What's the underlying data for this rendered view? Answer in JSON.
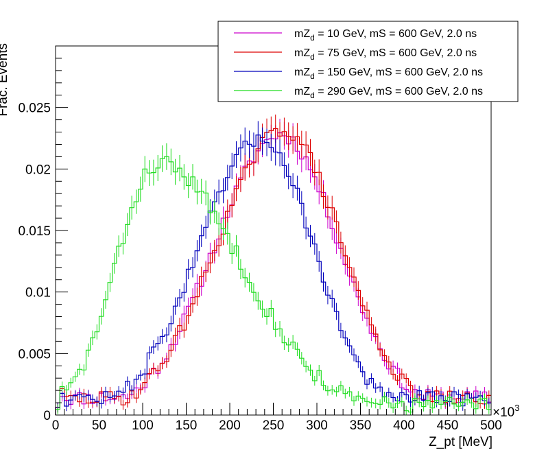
{
  "chart_data": {
    "type": "step-histogram",
    "title": "",
    "xlabel": "Z_pt [MeV]",
    "ylabel": "Frac. Events",
    "x_multiplier": "×10",
    "x_multiplier_exp": "3",
    "xlim": [
      0,
      500
    ],
    "ylim": [
      0,
      0.03
    ],
    "x_ticks": [
      0,
      50,
      100,
      150,
      200,
      250,
      300,
      350,
      400,
      450,
      500
    ],
    "x_tick_labels": [
      "0",
      "50",
      "100",
      "150",
      "200",
      "250",
      "300",
      "350",
      "400",
      "450",
      "500"
    ],
    "y_ticks": [
      0,
      0.005,
      0.01,
      0.015,
      0.02,
      0.025
    ],
    "y_tick_labels": [
      "0",
      "0.005",
      "0.01",
      "0.015",
      "0.02",
      "0.025"
    ],
    "bin_width": 5,
    "bins": 100,
    "legend_position": "top-right",
    "series": [
      {
        "name": "mZd = 10 GeV, mS = 600 GeV, 2.0 ns",
        "label_main": "mZ",
        "label_sub": "d",
        "label_rest": " = 10 GeV, mS = 600 GeV, 2.0 ns",
        "color": "#cc00cc",
        "peak_x": 258,
        "sigma_left": 75,
        "sigma_right": 68,
        "peak_y": 0.0228,
        "tail": 0.0018,
        "noise": 0.0006,
        "seed": 11
      },
      {
        "name": "mZd = 75 GeV, mS = 600 GeV, 2.0 ns",
        "label_main": "mZ",
        "label_sub": "d",
        "label_rest": " = 75 GeV, mS = 600 GeV, 2.0 ns",
        "color": "#dd0000",
        "peak_x": 262,
        "sigma_left": 76,
        "sigma_right": 66,
        "peak_y": 0.0232,
        "tail": 0.0017,
        "noise": 0.0006,
        "seed": 29
      },
      {
        "name": "mZd = 150 GeV, mS = 600 GeV, 2.0 ns",
        "label_main": "mZ",
        "label_sub": "d",
        "label_rest": " = 150 GeV, mS = 600 GeV, 2.0 ns",
        "color": "#0000bb",
        "peak_x": 237,
        "sigma_left": 72,
        "sigma_right": 60,
        "peak_y": 0.0225,
        "tail": 0.0017,
        "noise": 0.0006,
        "seed": 47
      },
      {
        "name": "mZd = 290 GeV, mS = 600 GeV, 2.0 ns",
        "label_main": "mZ",
        "label_sub": "d",
        "label_rest": " = 290 GeV, mS = 600 GeV, 2.0 ns",
        "color": "#22dd22",
        "peak_x": 118,
        "sigma_left": 48,
        "sigma_right": 95,
        "peak_y": 0.0205,
        "tail": 0.0012,
        "noise": 0.0007,
        "seed": 83
      }
    ]
  }
}
